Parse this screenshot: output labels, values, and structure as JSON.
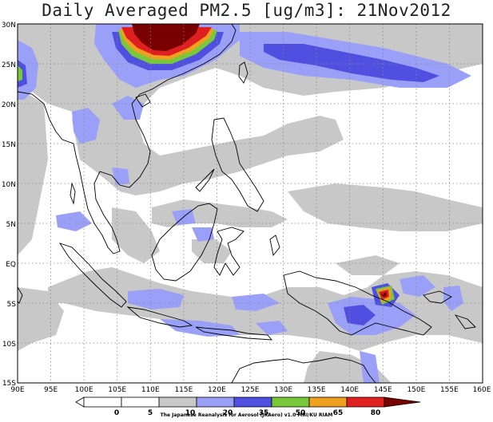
{
  "title": "Daily Averaged PM2.5 [ug/m3]: 21Nov2012",
  "map": {
    "lon_range": [
      90,
      160
    ],
    "lat_range": [
      -15,
      30
    ],
    "lon_ticks": [
      "90E",
      "95E",
      "100E",
      "105E",
      "110E",
      "115E",
      "120E",
      "125E",
      "130E",
      "135E",
      "140E",
      "145E",
      "150E",
      "155E",
      "160E"
    ],
    "lat_ticks": [
      "30N",
      "25N",
      "20N",
      "15N",
      "10N",
      "5N",
      "EQ",
      "5S",
      "10S",
      "15S"
    ],
    "grid": "dotted"
  },
  "colorbar": {
    "levels": [
      "0",
      "5",
      "10",
      "20",
      "35",
      "50",
      "65",
      "80"
    ],
    "colors": [
      "#ffffff",
      "#ffffff",
      "#c8c8c8",
      "#9aa0f8",
      "#5050e0",
      "#78c83c",
      "#f0a020",
      "#e02020",
      "#780000"
    ]
  },
  "credit": "The Japanese Reanalysis for Aerosol (JRAero) v1.0 MRI/KU RIAM"
}
